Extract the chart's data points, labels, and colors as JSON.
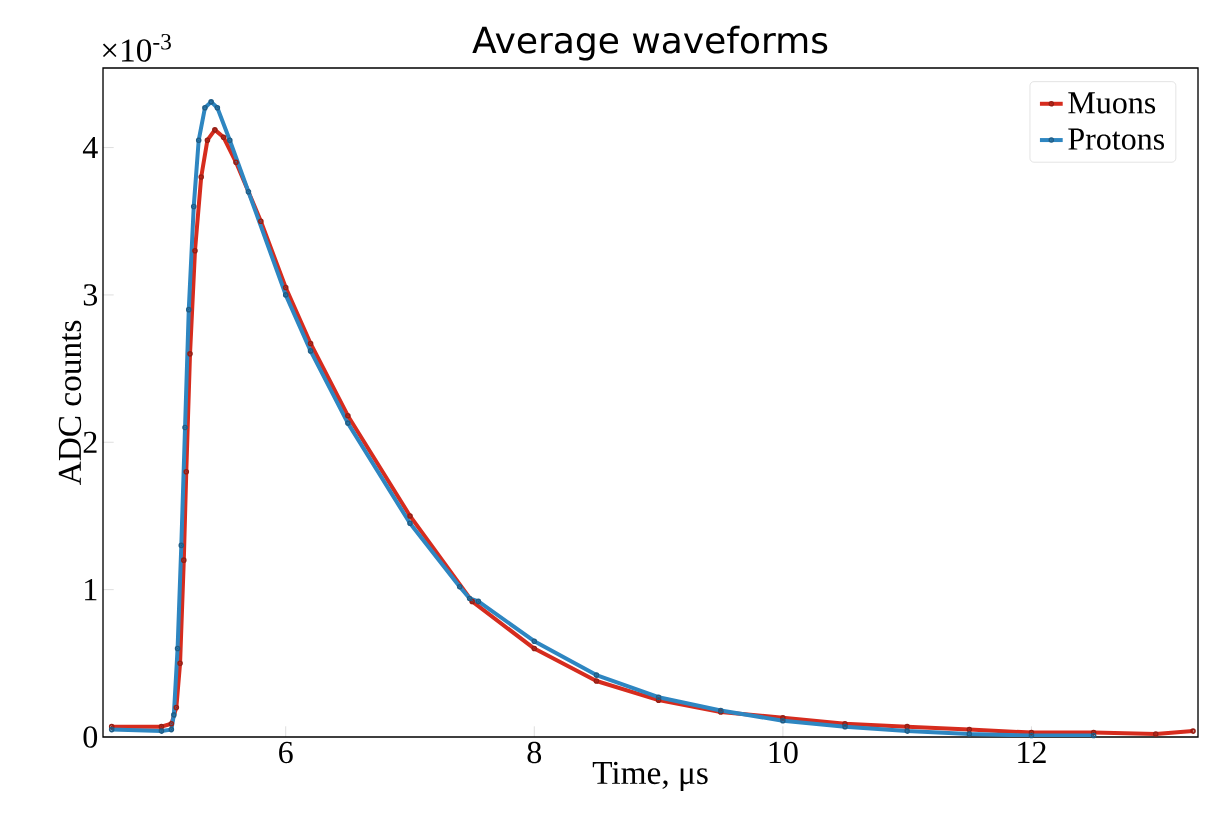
{
  "chart_data": {
    "type": "line",
    "title": "Average waveforms",
    "xlabel": "Time, μs",
    "ylabel": "ADC counts",
    "annotations": [
      "×10$^{-3}$"
    ],
    "xlim": [
      4.53,
      13.34
    ],
    "ylim": [
      0,
      4.54
    ],
    "xticks": [
      6,
      8,
      10,
      12
    ],
    "yticks": [
      0,
      1,
      2,
      3,
      4
    ],
    "legend": "top right",
    "marker": "circle",
    "line_style": "solid",
    "grid": false,
    "series": [
      {
        "name": "Muons",
        "color": "#d62c1e",
        "x": [
          4.6,
          5.0,
          5.08,
          5.12,
          5.15,
          5.18,
          5.2,
          5.23,
          5.27,
          5.32,
          5.37,
          5.43,
          5.5,
          5.6,
          5.8,
          6.0,
          6.2,
          6.5,
          7.0,
          7.5,
          8.0,
          8.5,
          9.0,
          9.5,
          10.0,
          10.5,
          11.0,
          11.5,
          12.0,
          12.5,
          13.0,
          13.3
        ],
        "values": [
          0.07,
          0.07,
          0.09,
          0.2,
          0.5,
          1.2,
          1.8,
          2.6,
          3.3,
          3.8,
          4.05,
          4.12,
          4.07,
          3.9,
          3.5,
          3.05,
          2.67,
          2.18,
          1.5,
          0.92,
          0.6,
          0.38,
          0.25,
          0.17,
          0.13,
          0.09,
          0.07,
          0.05,
          0.03,
          0.03,
          0.02,
          0.04
        ]
      },
      {
        "name": "Protons",
        "color": "#2e86c1",
        "x": [
          4.6,
          5.0,
          5.08,
          5.1,
          5.13,
          5.16,
          5.19,
          5.22,
          5.26,
          5.3,
          5.35,
          5.4,
          5.45,
          5.55,
          5.7,
          6.0,
          6.2,
          6.5,
          7.0,
          7.4,
          7.48,
          7.55,
          8.0,
          8.5,
          9.0,
          9.5,
          10.0,
          10.5,
          11.0,
          11.5,
          12.0,
          12.5
        ],
        "values": [
          0.05,
          0.04,
          0.05,
          0.15,
          0.6,
          1.3,
          2.1,
          2.9,
          3.6,
          4.05,
          4.27,
          4.31,
          4.27,
          4.05,
          3.7,
          3.0,
          2.62,
          2.13,
          1.45,
          1.02,
          0.94,
          0.92,
          0.65,
          0.42,
          0.27,
          0.18,
          0.11,
          0.07,
          0.04,
          0.02,
          0.01,
          0.01
        ]
      }
    ]
  }
}
